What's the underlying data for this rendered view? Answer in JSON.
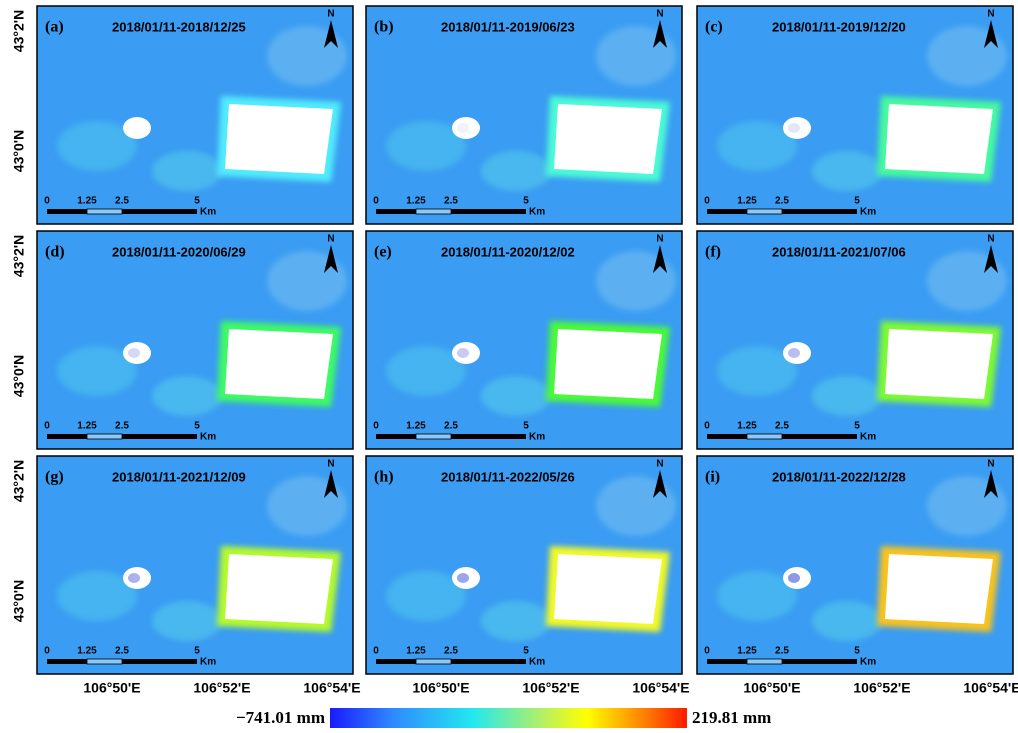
{
  "panels": [
    {
      "label": "(a)",
      "period": "2018/01/11-2018/12/25"
    },
    {
      "label": "(b)",
      "period": "2018/01/11-2019/06/23"
    },
    {
      "label": "(c)",
      "period": "2018/01/11-2019/12/20"
    },
    {
      "label": "(d)",
      "period": "2018/01/11-2020/06/29"
    },
    {
      "label": "(e)",
      "period": "2018/01/11-2020/12/02"
    },
    {
      "label": "(f)",
      "period": "2018/01/11-2021/07/06"
    },
    {
      "label": "(g)",
      "period": "2018/01/11-2021/12/09"
    },
    {
      "label": "(h)",
      "period": "2018/01/11-2022/05/26"
    },
    {
      "label": "(i)",
      "period": "2018/01/11-2022/12/28"
    }
  ],
  "north_label": "N",
  "scale_bar": {
    "ticks": [
      "0",
      "1.25",
      "2.5",
      "5"
    ],
    "unit": "Km"
  },
  "lat_labels": [
    "43°2'N",
    "43°0'N"
  ],
  "lon_labels": [
    "106°50'E",
    "106°52'E",
    "106°54'E"
  ],
  "colorbar": {
    "min_label": "−741.01 mm",
    "max_label": "219.81 mm"
  }
}
